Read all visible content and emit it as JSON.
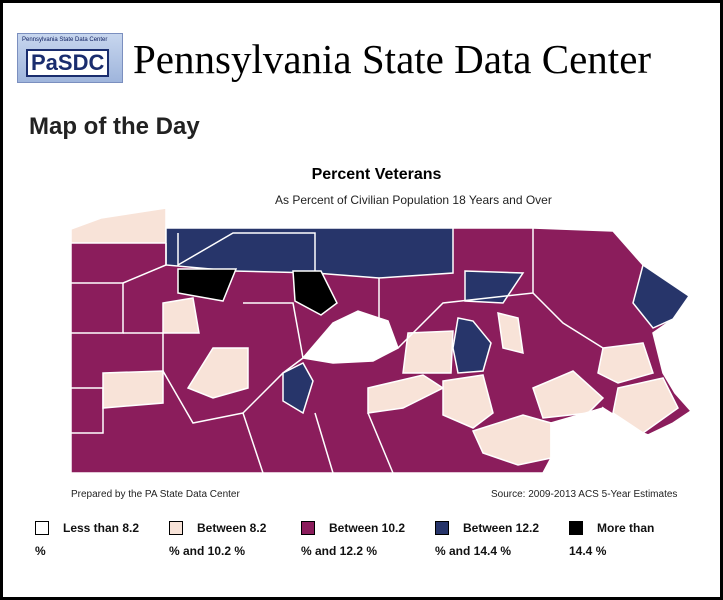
{
  "header": {
    "logo_small": "Pennsylvania State Data Center",
    "logo": "PaSDC",
    "title": "Pennsylvania State Data Center"
  },
  "section_title": "Map of the Day",
  "map": {
    "title": "Percent Veterans",
    "subtitle": "As Percent of Civilian Population 18 Years and Over",
    "credit": "Prepared by the PA State Data Center",
    "source": "Source: 2009-2013 ACS 5-Year Estimates"
  },
  "legend": [
    {
      "color": "#ffffff",
      "lines": [
        "Less than 8.2",
        "%"
      ]
    },
    {
      "color": "#f8e3d8",
      "lines": [
        "Between 8.2",
        "% and 10.2 %"
      ]
    },
    {
      "color": "#8b1d5c",
      "lines": [
        "Between 10.2",
        "% and 12.2 %"
      ]
    },
    {
      "color": "#27356a",
      "lines": [
        "Between 12.2",
        "% and 14.4 %"
      ]
    },
    {
      "color": "#000000",
      "lines": [
        "More than",
        "14.4 %"
      ]
    }
  ]
}
